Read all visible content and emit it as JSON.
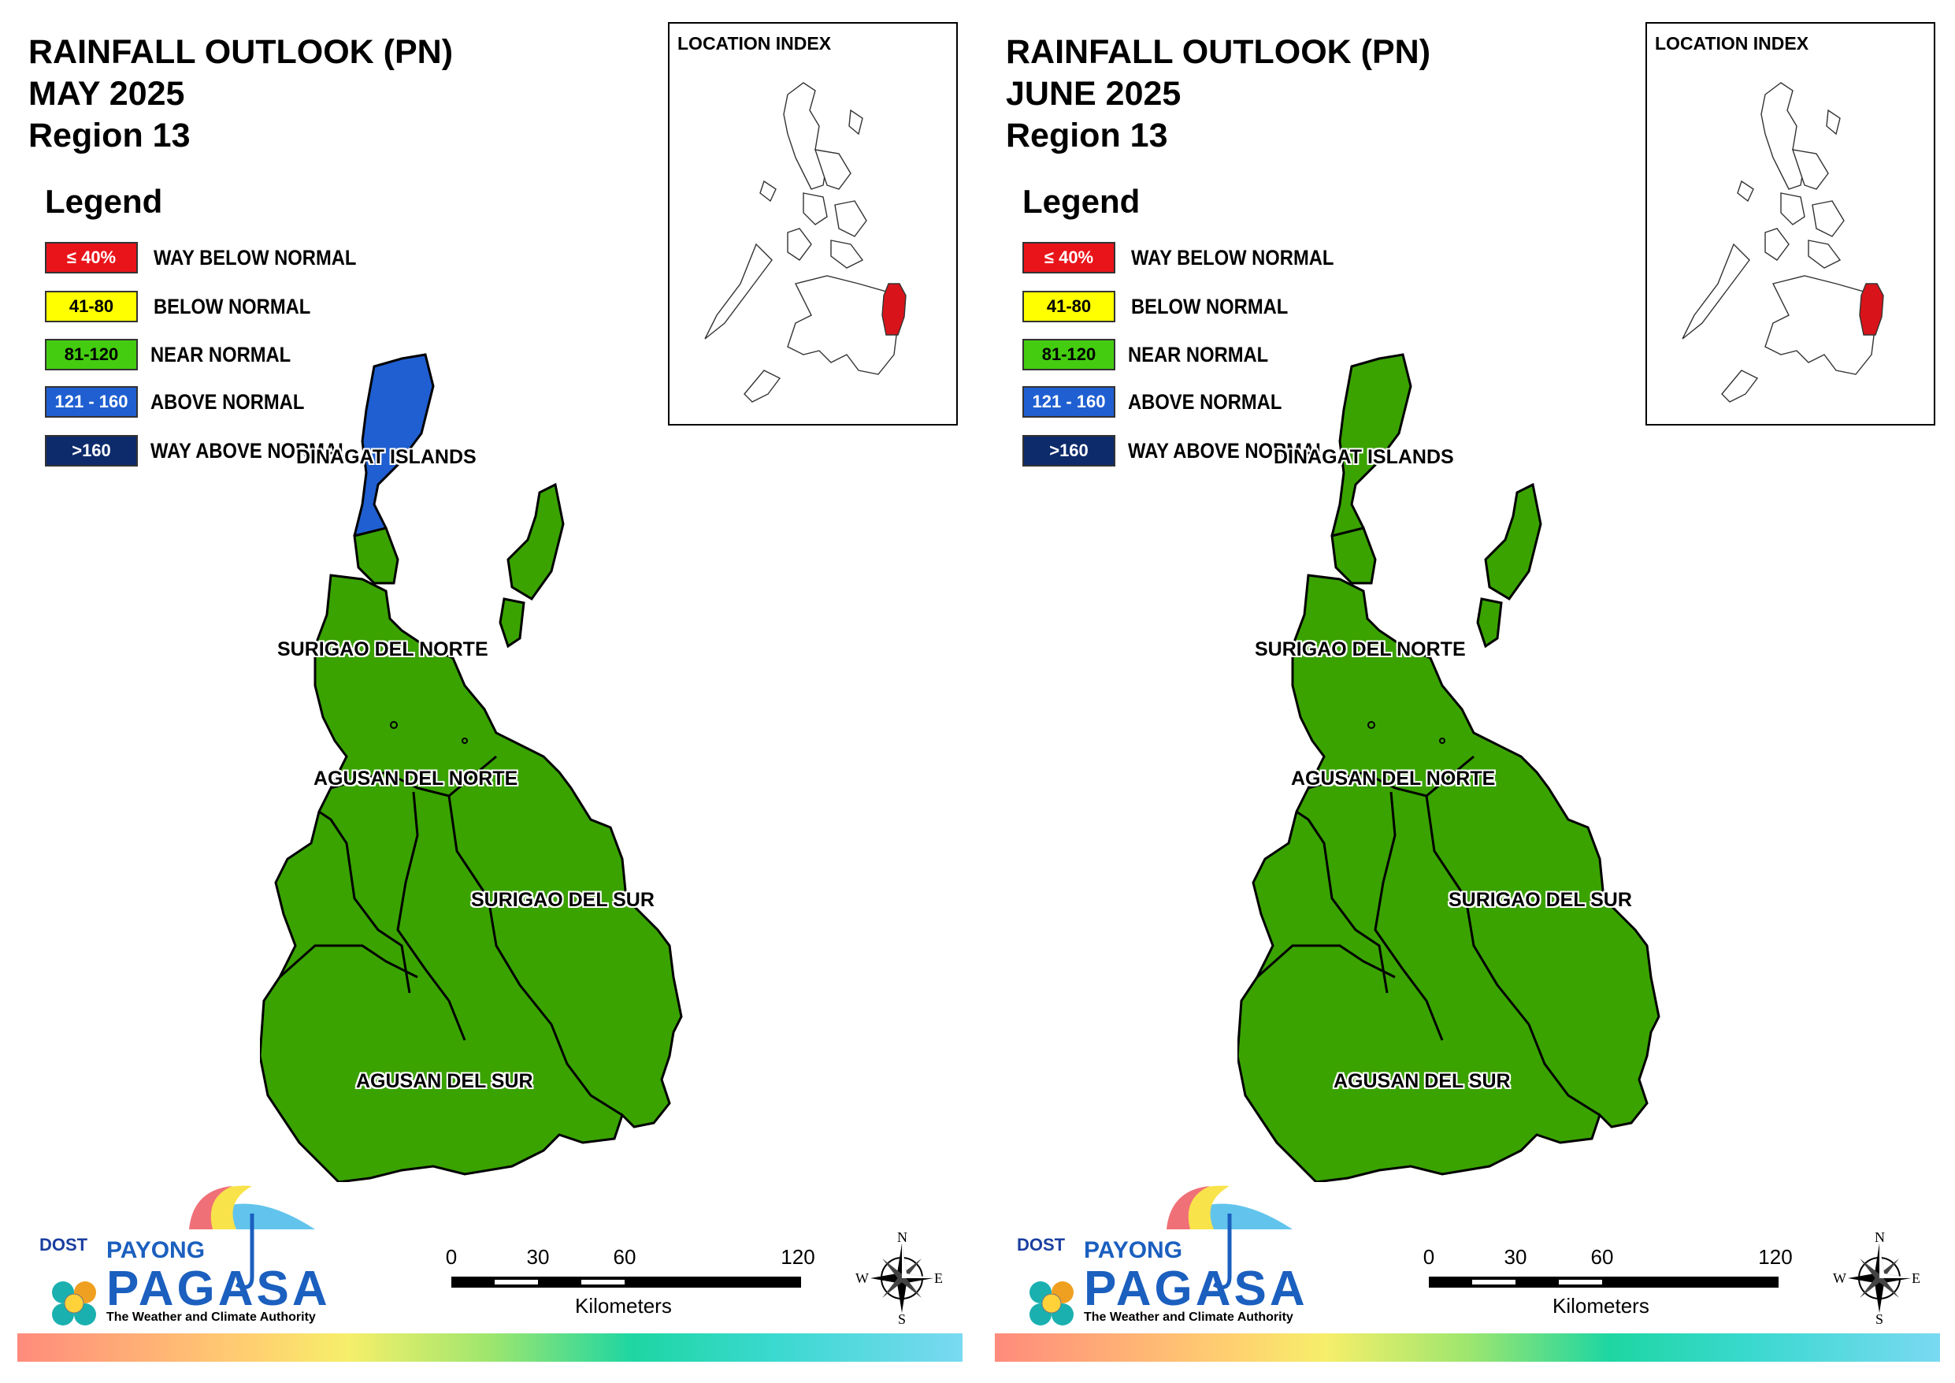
{
  "panels": [
    {
      "title_line1": "RAINFALL OUTLOOK (PN)",
      "title_line2": "MAY 2025",
      "title_line3": "Region 13",
      "dinagat_color": "#1f5fd1",
      "inset_highlight_color": "#d8141a"
    },
    {
      "title_line1": "RAINFALL OUTLOOK (PN)",
      "title_line2": "JUNE 2025",
      "title_line3": "Region 13",
      "dinagat_color": "#3aa300",
      "inset_highlight_color": "#d8141a"
    }
  ],
  "legend": {
    "title": "Legend",
    "items": [
      {
        "range": "≤ 40%",
        "label": "WAY BELOW NORMAL",
        "color": "#e8141a",
        "text_color": "#ffffff"
      },
      {
        "range": "41-80",
        "label": "BELOW NORMAL",
        "color": "#ffff00",
        "text_color": "#000000"
      },
      {
        "range": "81-120",
        "label": "NEAR NORMAL",
        "color": "#44cc11",
        "text_color": "#000000"
      },
      {
        "range": "121 - 160",
        "label": "ABOVE NORMAL",
        "color": "#1f5fd1",
        "text_color": "#ffffff"
      },
      {
        "range": ">160",
        "label": "WAY ABOVE NORMAL",
        "color": "#0d2a6b",
        "text_color": "#ffffff"
      }
    ]
  },
  "inset": {
    "title": "LOCATION INDEX"
  },
  "provinces": {
    "dinagat": "DINAGAT ISLANDS",
    "surigao_norte": "SURIGAO DEL NORTE",
    "agusan_norte": "AGUSAN DEL NORTE",
    "surigao_sur": "SURIGAO DEL SUR",
    "agusan_sur": "AGUSAN DEL SUR"
  },
  "map_fill": "#3aa300",
  "logo": {
    "dost": "DOST",
    "payong": "PAYONG",
    "pagasa": "PAGASA",
    "tagline": "The Weather and Climate Authority"
  },
  "scale": {
    "ticks": [
      "0",
      "30",
      "60",
      "120"
    ],
    "units": "Kilometers"
  },
  "compass": {
    "n": "N",
    "s": "S",
    "e": "E",
    "w": "W"
  }
}
